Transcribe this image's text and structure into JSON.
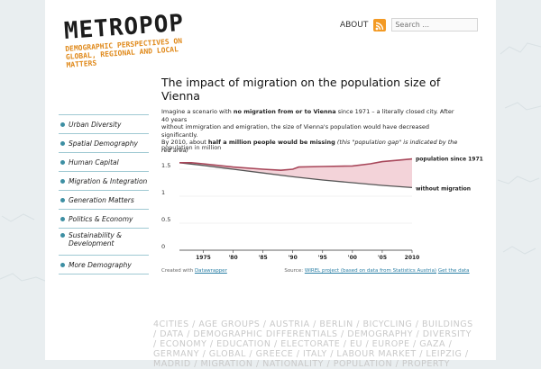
{
  "header": {
    "logo_title": "METROPOP",
    "logo_tagline": "DEMOGRAPHIC PERSPECTIVES ON GLOBAL, REGIONAL AND LOCAL MATTERS",
    "about_label": "ABOUT",
    "search_placeholder": "Search ..."
  },
  "sidebar": {
    "items": [
      {
        "label": "Urban Diversity"
      },
      {
        "label": "Spatial Demography"
      },
      {
        "label": "Human Capital"
      },
      {
        "label": "Migration & Integration"
      },
      {
        "label": "Generation Matters"
      },
      {
        "label": "Politics & Economy"
      },
      {
        "label": "Sustainability & Development"
      },
      {
        "label": "More Demography"
      }
    ]
  },
  "article": {
    "title": "The impact of migration on the population size of Vienna",
    "p1_a": "Imagine a scenario with ",
    "p1_b": "no migration from or to Vienna",
    "p1_c": " since 1971 – a literally closed city. After 40 years",
    "p2": "without immigration and emigration, the size of Vienna's population would have decreased significantly.",
    "p3_a": "By 2010, about ",
    "p3_b": "half a million people would be missing",
    "p3_c": " (this \"population gap\" is indicated by the red area)"
  },
  "chart_data": {
    "type": "line",
    "ylabel": "population in million",
    "ylim": [
      0,
      1.6
    ],
    "xlim": [
      1971,
      2010
    ],
    "x_ticks": [
      "1975",
      "'80",
      "'85",
      "'90",
      "'95",
      "'00",
      "'05",
      "2010"
    ],
    "y_ticks": [
      "0",
      "0.5",
      "1",
      "1.5"
    ],
    "series": [
      {
        "name": "population since 1971",
        "color": "#a8475a",
        "x": [
          1971,
          1973,
          1975,
          1980,
          1985,
          1988,
          1990,
          1991,
          1995,
          2000,
          2003,
          2005,
          2008,
          2010
        ],
        "values": [
          1.62,
          1.62,
          1.6,
          1.54,
          1.5,
          1.48,
          1.5,
          1.54,
          1.55,
          1.56,
          1.6,
          1.64,
          1.67,
          1.69
        ]
      },
      {
        "name": "without migration",
        "color": "#555555",
        "x": [
          1971,
          1975,
          1980,
          1985,
          1990,
          1995,
          2000,
          2005,
          2010
        ],
        "values": [
          1.62,
          1.57,
          1.5,
          1.43,
          1.36,
          1.3,
          1.25,
          1.2,
          1.16
        ]
      }
    ],
    "gap_fill_color": "#f3d3d9"
  },
  "footer": {
    "created_with_label": "Created with",
    "created_with_link": "Datawrapper",
    "source_label": "Source:",
    "source_link": "WIREL project (based on data from Statistics Austria)",
    "data_link": "Get the data"
  },
  "tagcloud": {
    "text": "4CITIES / AGE GROUPS / AUSTRIA / BERLIN / BICYCLING / BUILDINGS / DATA / DEMOGRAPHIC DIFFERENTIALS / DEMOGRAPHY / DIVERSITY / ECONOMY / EDUCATION / ELECTORATE / EU / EUROPE / GAZA / GERMANY / GLOBAL / GREECE / ITALY / LABOUR MARKET / LEIPZIG / MADRID / MIGRATION / NATIONALITY / POPULATION / PROPERTY"
  }
}
